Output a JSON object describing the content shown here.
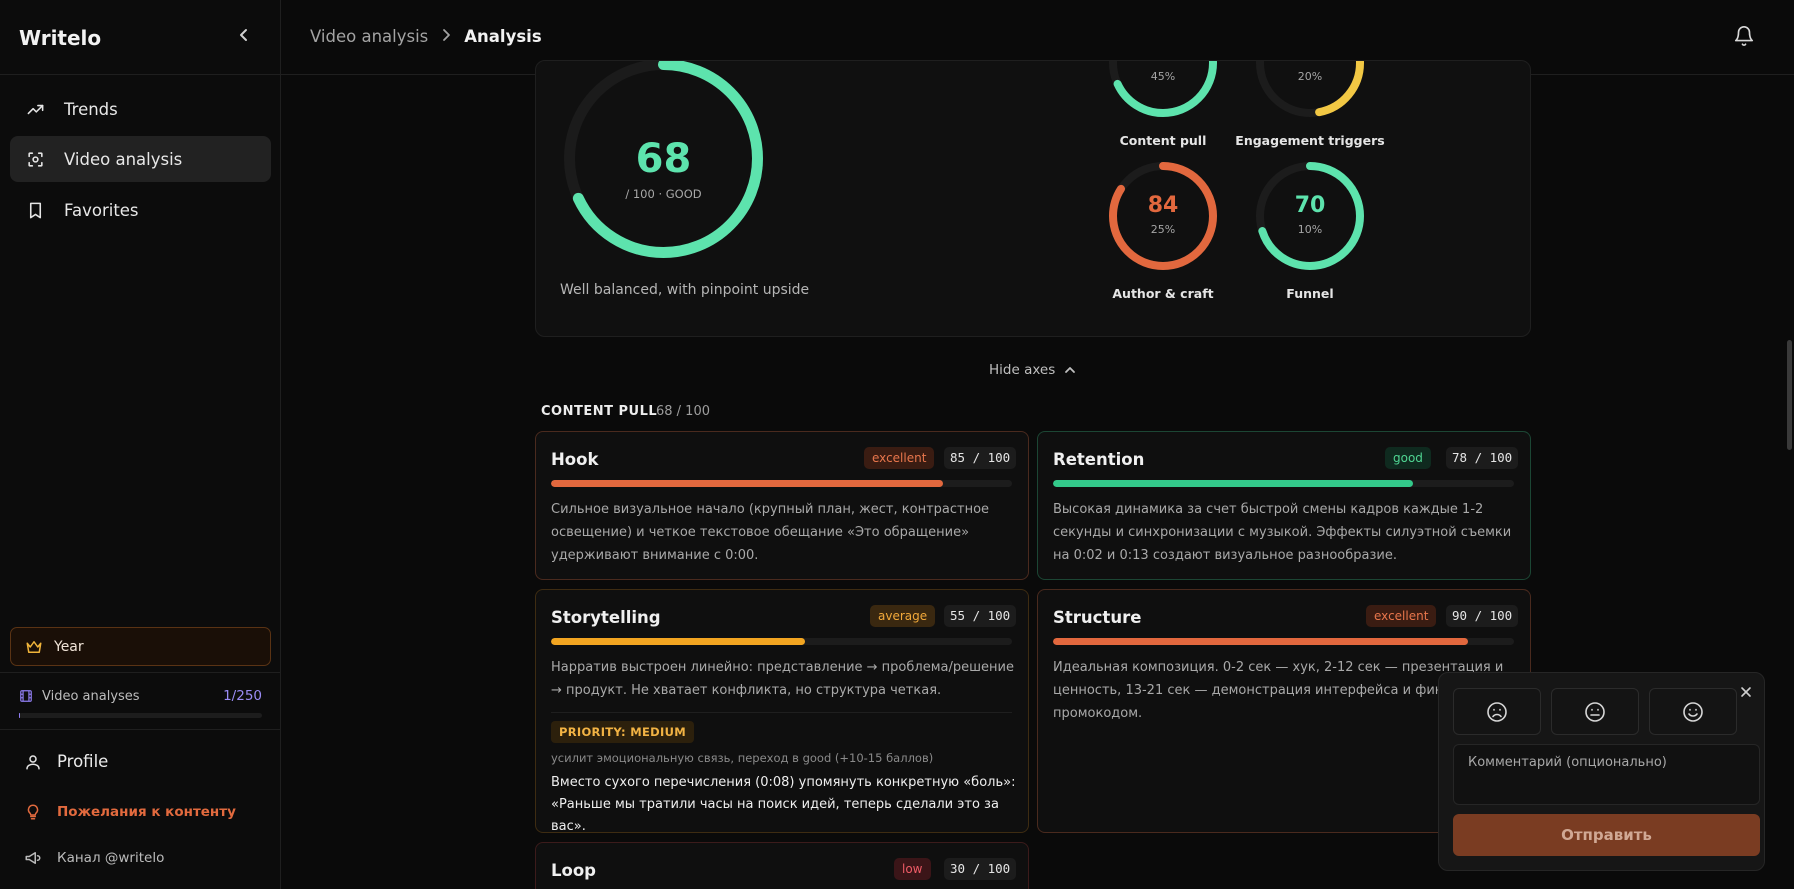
{
  "app": {
    "brand": "Writelo"
  },
  "nav": [
    {
      "label": "Trends",
      "icon": "trending-up-icon",
      "active": false
    },
    {
      "label": "Video analysis",
      "icon": "scan-icon",
      "active": true
    },
    {
      "label": "Favorites",
      "icon": "bookmark-icon",
      "active": false
    }
  ],
  "plan": {
    "label": "Year",
    "icon": "crown-icon"
  },
  "usage": {
    "label": "Video analyses",
    "count": "1/250",
    "fraction": 0.004
  },
  "sidebar_bottom": {
    "profile": "Profile",
    "wishes": "Пожелания к контенту",
    "channel": "Канал @writelo"
  },
  "breadcrumb": {
    "parent": "Video analysis",
    "current": "Analysis"
  },
  "summary": {
    "score": "68",
    "score_value": 68,
    "sub": "/ 100 · GOOD",
    "caption": "Well balanced, with pinpoint upside",
    "axes": [
      {
        "score": "68",
        "value": 68,
        "weight": "45%",
        "label": "Content pull",
        "color": "#5de3ad"
      },
      {
        "score": "47",
        "value": 47,
        "weight": "20%",
        "label": "Engagement triggers",
        "color": "#f2c844"
      },
      {
        "score": "84",
        "value": 84,
        "weight": "25%",
        "label": "Author & craft",
        "color": "#e2683e"
      },
      {
        "score": "70",
        "value": 70,
        "weight": "10%",
        "label": "Funnel",
        "color": "#5de3ad"
      }
    ]
  },
  "toggle": {
    "label": "Hide axes"
  },
  "section": {
    "title": "CONTENT PULL",
    "score": "68 / 100"
  },
  "metrics": [
    {
      "title": "Hook",
      "badge": "excellent",
      "score": "85 / 100",
      "value": 85,
      "color": "#e2683e",
      "desc": "Сильное визуальное начало (крупный план, жест, контрастное освещение) и четкое текстовое обещание «Это обращение» удерживают внимание с 0:00."
    },
    {
      "title": "Retention",
      "badge": "good",
      "score": "78 / 100",
      "value": 78,
      "color": "#33c98a",
      "desc": "Высокая динамика за счет быстрой смены кадров каждые 1-2 секунды и синхронизации с музыкой. Эффекты силуэтной съемки на 0:02 и 0:13 создают визуальное разнообразие."
    },
    {
      "title": "Storytelling",
      "badge": "average",
      "score": "55 / 100",
      "value": 55,
      "color": "#f2a521",
      "desc": "Нарратив выстроен линейно: представление → проблема/решение → продукт. Не хватает конфликта, но структура четкая.",
      "priority": "PRIORITY: MEDIUM",
      "priority_note": "усилит эмоциональную связь, переход в good (+10-15 баллов)",
      "priority_text": "Вместо сухого перечисления (0:08) упомянуть конкретную «боль»: «Раньше мы тратили часы на поиск идей, теперь сделали это за вас»."
    },
    {
      "title": "Structure",
      "badge": "excellent",
      "score": "90 / 100",
      "value": 90,
      "color": "#e2683e",
      "desc": "Идеальная композиция. 0-2 сек — хук, 2-12 сек — презентация и ценность, 13-21 сек — демонстрация интерфейса и финал с промокодом."
    },
    {
      "title": "Loop",
      "badge": "low",
      "score": "30 / 100",
      "value": 30,
      "color": "#e04a55"
    }
  ],
  "feedback": {
    "placeholder": "Комментарий (опционально)",
    "send": "Отправить"
  }
}
